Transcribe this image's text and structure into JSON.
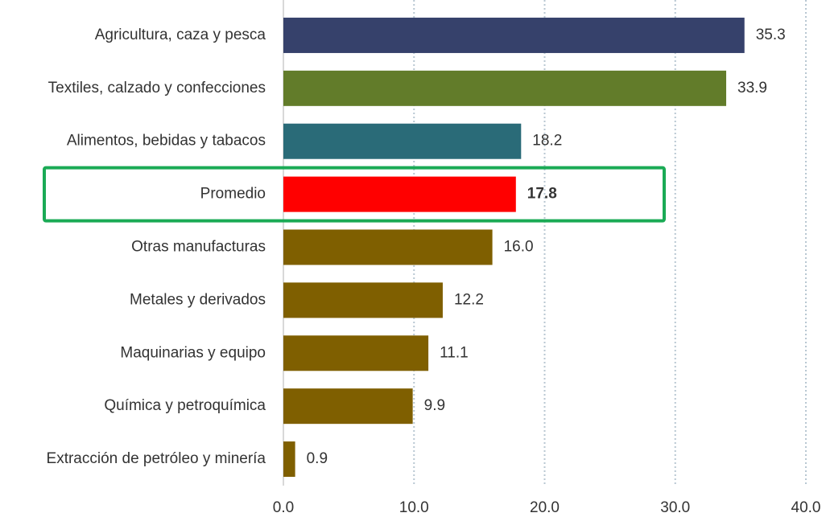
{
  "chart_data": {
    "type": "hbar",
    "categories": [
      "Agricultura, caza y pesca",
      "Textiles, calzado y confecciones",
      "Alimentos, bebidas y tabacos",
      "Promedio",
      "Otras manufacturas",
      "Metales y derivados",
      "Maquinarias y equipo",
      "Química y petroquímica",
      "Extracción de petróleo y minería"
    ],
    "values": [
      35.3,
      33.9,
      18.2,
      17.8,
      16.0,
      12.2,
      11.1,
      9.9,
      0.9
    ],
    "value_labels": [
      "35.3",
      "33.9",
      "18.2",
      "17.8",
      "16.0",
      "12.2",
      "11.1",
      "9.9",
      "0.9"
    ],
    "colors": [
      "#36416b",
      "#627c2a",
      "#2a6b78",
      "#ff0000",
      "#7f5f00",
      "#7f5f00",
      "#7f5f00",
      "#7f5f00",
      "#7f5f00"
    ],
    "xlim": [
      0,
      40
    ],
    "xticks": [
      {
        "value": 0,
        "label": "0.0"
      },
      {
        "value": 10,
        "label": "10.0"
      },
      {
        "value": 20,
        "label": "20.0"
      },
      {
        "value": 30,
        "label": "30.0"
      },
      {
        "value": 40,
        "label": "40.0"
      }
    ],
    "grid": true
  }
}
